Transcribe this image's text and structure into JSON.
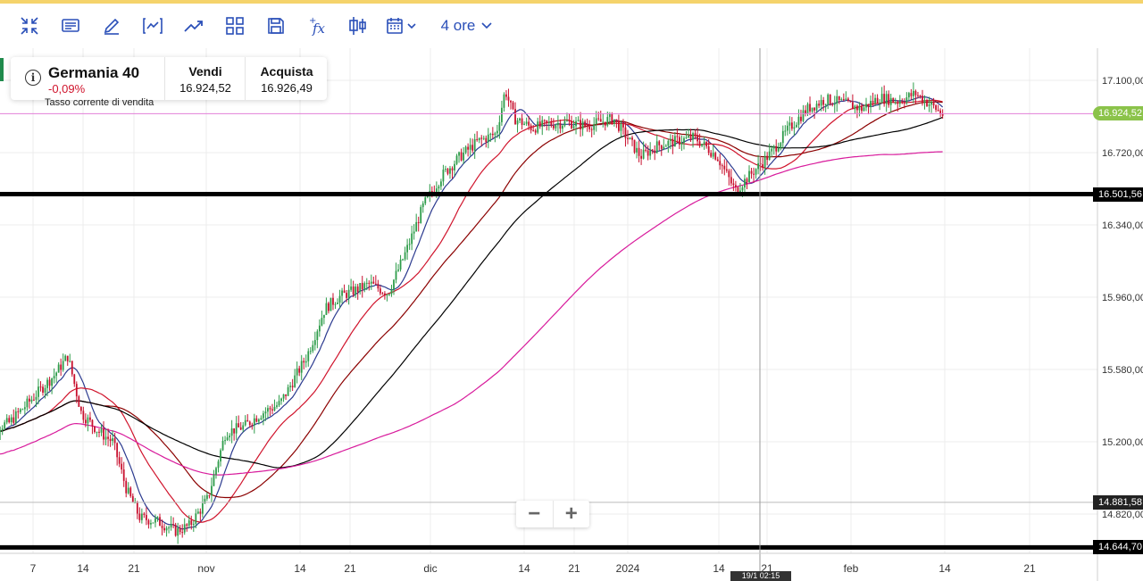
{
  "toolbar": {
    "items": [
      {
        "name": "fullscreen-collapse-icon"
      },
      {
        "name": "news-icon"
      },
      {
        "name": "draw-icon"
      },
      {
        "name": "chart-type-icon"
      },
      {
        "name": "trend-icon"
      },
      {
        "name": "layout-grid-icon"
      },
      {
        "name": "save-icon"
      },
      {
        "name": "indicators-icon"
      },
      {
        "name": "candles-icon"
      },
      {
        "name": "calendar-icon"
      }
    ],
    "timeframe": "4 ore"
  },
  "instrument": {
    "name": "Germania 40",
    "change": "-0,09%",
    "sell_label": "Vendi",
    "sell_price": "16.924,52",
    "buy_label": "Acquista",
    "buy_price": "16.926,49",
    "rate_note": "Tasso corrente di vendita"
  },
  "zoom": {
    "minus": "−",
    "plus": "+"
  },
  "crosshair_time": "19/1 02:15",
  "price_tags": [
    {
      "label": "16.924,52",
      "value": 16924.52,
      "color": "#8bc34a"
    },
    {
      "label": "16.501,56",
      "value": 16501.56,
      "color": "#000000"
    },
    {
      "label": "14.881,58",
      "value": 14881.58,
      "color": "#222222"
    },
    {
      "label": "14.644,70",
      "value": 14644.7,
      "color": "#000000"
    }
  ],
  "colors": {
    "up": "#2e9c4a",
    "down": "#c8102e",
    "ma_blue": "#2b3a8f",
    "ma_red1": "#d0142c",
    "ma_red2": "#8b0000",
    "ma_black": "#000000",
    "ma_magenta": "#d81b9c"
  },
  "chart_data": {
    "type": "candlestick",
    "y_ticks": [
      "17.100,00",
      "16.720,00",
      "16.340,00",
      "15.960,00",
      "15.580,00",
      "15.200,00",
      "14.820,00"
    ],
    "y_tick_values": [
      17100,
      16720,
      16340,
      15960,
      15580,
      15200,
      14820
    ],
    "x_ticks": [
      "7",
      "14",
      "21",
      "nov",
      "14",
      "21",
      "dic",
      "14",
      "21",
      "2024",
      "14",
      "21",
      "feb",
      "14",
      "21"
    ],
    "horizontal_levels": [
      16501.56,
      14644.7,
      14881.58
    ],
    "current_price": 16924.52,
    "path": [
      [
        0,
        15250
      ],
      [
        3,
        15300
      ],
      [
        6,
        15450
      ],
      [
        8,
        15550
      ],
      [
        9.5,
        15650
      ],
      [
        11,
        15350
      ],
      [
        13,
        15250
      ],
      [
        14.5,
        15200
      ],
      [
        16,
        14950
      ],
      [
        17.5,
        14800
      ],
      [
        19.5,
        14780
      ],
      [
        21.5,
        14730
      ],
      [
        23,
        14760
      ],
      [
        25,
        14900
      ],
      [
        27,
        15250
      ],
      [
        29,
        15280
      ],
      [
        31,
        15350
      ],
      [
        33,
        15400
      ],
      [
        34,
        15480
      ],
      [
        36,
        15650
      ],
      [
        38,
        15900
      ],
      [
        39.5,
        15960
      ],
      [
        41,
        15990
      ],
      [
        43,
        16030
      ],
      [
        45,
        15980
      ],
      [
        47,
        16200
      ],
      [
        49,
        16450
      ],
      [
        51,
        16600
      ],
      [
        53,
        16700
      ],
      [
        55,
        16780
      ],
      [
        57,
        16820
      ],
      [
        58,
        17050
      ],
      [
        59,
        16900
      ],
      [
        61,
        16850
      ],
      [
        63,
        16870
      ],
      [
        65,
        16880
      ],
      [
        67,
        16860
      ],
      [
        68.5,
        16880
      ],
      [
        70,
        16900
      ],
      [
        71.5,
        16800
      ],
      [
        73,
        16700
      ],
      [
        75,
        16760
      ],
      [
        77,
        16780
      ],
      [
        79,
        16800
      ],
      [
        81.5,
        16700
      ],
      [
        83.5,
        16520
      ],
      [
        85.5,
        16620
      ],
      [
        87.5,
        16720
      ],
      [
        89.5,
        16850
      ],
      [
        91.5,
        16950
      ],
      [
        93.5,
        17000
      ],
      [
        95.5,
        16980
      ],
      [
        97.5,
        16950
      ],
      [
        99.5,
        17010
      ],
      [
        101.5,
        16990
      ],
      [
        103.5,
        17030
      ],
      [
        105.5,
        16960
      ],
      [
        106.5,
        16920
      ]
    ]
  }
}
